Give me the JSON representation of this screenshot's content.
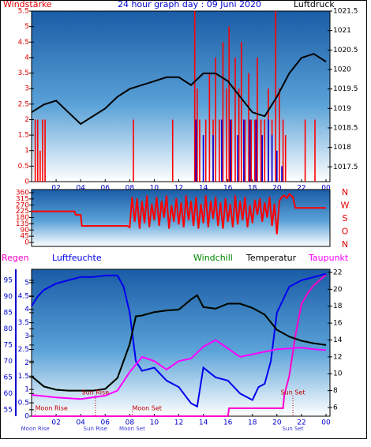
{
  "chart_data": [
    {
      "type": "bar",
      "title": "24 hour graph day : 09 Juni 2020",
      "ylabel": "Windstärke",
      "y2label": "Luftdruck",
      "ycolor": "#e00000",
      "y2color": "#000000",
      "xlim": [
        0,
        24
      ],
      "xticks": [
        {
          "value": 2,
          "label": "02"
        },
        {
          "value": 4,
          "label": "04"
        },
        {
          "value": 6,
          "label": "06"
        },
        {
          "value": 8,
          "label": "08"
        },
        10,
        12,
        14,
        16,
        18,
        20,
        22,
        {
          "value": 24,
          "label": "00"
        }
      ],
      "ylim": [
        0,
        5.5
      ],
      "yticks": [
        0,
        0.5,
        1,
        1.5,
        2,
        2.5,
        3,
        3.5,
        4,
        4.5,
        5,
        5.5
      ],
      "y2lim": [
        1017.12,
        1021.5
      ],
      "y2ticks": [
        1017.5,
        1018,
        1018.5,
        1019,
        1019.5,
        1020,
        1020.5,
        1021,
        1021.5
      ],
      "series": [
        {
          "type": "bar",
          "color": "#ff0000",
          "x": [
            0.3,
            0.5,
            0.7,
            0.9,
            1.1,
            8.3,
            11.5,
            13.3,
            13.5,
            13.7,
            14.2,
            14.5,
            14.8,
            15.0,
            15.3,
            15.6,
            15.9,
            16.1,
            16.3,
            16.6,
            16.9,
            17.1,
            17.4,
            17.7,
            17.9,
            18.2,
            18.4,
            18.7,
            19.0,
            19.3,
            19.6,
            19.9,
            20.2,
            20.5,
            20.7,
            22.3,
            23.1
          ],
          "values": [
            2,
            2,
            1,
            2,
            2,
            2,
            2,
            5.5,
            3,
            2,
            2,
            3.5,
            2,
            4,
            2,
            4.5,
            3,
            5,
            2,
            4,
            3,
            4.5,
            2,
            3.5,
            2,
            2,
            4,
            2,
            2,
            3,
            2,
            5.5,
            3,
            2,
            1.5,
            2,
            2
          ]
        },
        {
          "type": "bar",
          "color": "#0000dd",
          "x": [
            13.4,
            14.0,
            14.8,
            15.5,
            16.2,
            16.8,
            17.3,
            17.8,
            18.3,
            18.8,
            19.3,
            19.6,
            20.0,
            20.4
          ],
          "values": [
            2,
            1.5,
            1.5,
            2,
            2,
            1.5,
            2,
            2,
            2,
            1.5,
            2,
            1.5,
            1,
            0.5
          ]
        },
        {
          "type": "line",
          "axis": "y2",
          "color": "#000000",
          "x": [
            0,
            1,
            2,
            3,
            4,
            5,
            6,
            7,
            8,
            9,
            10,
            11,
            12,
            13,
            14,
            15,
            16,
            17,
            18,
            19,
            20,
            21,
            22,
            23,
            24
          ],
          "values": [
            1018.9,
            1019.1,
            1019.2,
            1018.9,
            1018.6,
            1018.8,
            1019.0,
            1019.3,
            1019.5,
            1019.6,
            1019.7,
            1019.8,
            1019.8,
            1019.6,
            1019.9,
            1019.9,
            1019.7,
            1019.3,
            1018.9,
            1018.8,
            1019.3,
            1019.9,
            1020.3,
            1020.4,
            1020.2
          ]
        }
      ]
    },
    {
      "type": "line",
      "ycolor": "#e00000",
      "xlim": [
        0,
        24
      ],
      "ylim": [
        0,
        360
      ],
      "yticks": [
        0,
        45,
        90,
        135,
        180,
        225,
        270,
        315,
        360
      ],
      "compass": [
        "N",
        "W",
        "S",
        "O",
        "N"
      ],
      "series": [
        {
          "type": "line",
          "color": "#ff0000",
          "x": [
            0,
            3.5,
            3.6,
            4,
            4.1,
            7.8,
            8.0,
            8.2,
            8.4,
            8.6,
            8.8,
            9,
            9.2,
            9.4,
            9.6,
            9.8,
            10,
            10.2,
            10.4,
            10.6,
            10.8,
            11,
            11.2,
            11.4,
            11.6,
            11.8,
            12,
            12.2,
            12.4,
            12.6,
            12.8,
            13,
            13.2,
            13.4,
            13.6,
            13.8,
            14,
            14.2,
            14.4,
            14.6,
            14.8,
            15,
            15.2,
            15.4,
            15.6,
            15.8,
            16,
            16.2,
            16.4,
            16.6,
            16.8,
            17,
            17.2,
            17.4,
            17.6,
            17.8,
            18,
            18.2,
            18.4,
            18.6,
            18.8,
            19,
            19.2,
            19.4,
            19.6,
            19.8,
            20,
            20.2,
            20.4,
            20.6,
            20.8,
            21,
            21.3,
            21.5,
            24
          ],
          "values": [
            225,
            225,
            200,
            200,
            120,
            120,
            110,
            330,
            150,
            320,
            100,
            300,
            140,
            340,
            110,
            280,
            160,
            330,
            120,
            300,
            180,
            340,
            100,
            270,
            150,
            320,
            130,
            290,
            110,
            340,
            160,
            300,
            120,
            330,
            100,
            280,
            140,
            340,
            110,
            300,
            170,
            330,
            120,
            290,
            100,
            320,
            150,
            280,
            110,
            340,
            130,
            300,
            160,
            330,
            110,
            270,
            140,
            310,
            200,
            320,
            150,
            290,
            180,
            330,
            120,
            280,
            60,
            300,
            330,
            340,
            320,
            350,
            330,
            250,
            250
          ]
        }
      ]
    },
    {
      "type": "line",
      "xlim": [
        0,
        24
      ],
      "xticks": [
        {
          "value": 2,
          "label": "02"
        },
        {
          "value": 4,
          "label": "04"
        },
        {
          "value": 6,
          "label": "06"
        },
        {
          "value": 8,
          "label": "08"
        },
        10,
        12,
        14,
        16,
        18,
        20,
        22,
        {
          "value": 24,
          "label": "00"
        }
      ],
      "ylim": [
        53,
        98.4
      ],
      "yticks": [
        55,
        60,
        65,
        70,
        75,
        80,
        85,
        90,
        95
      ],
      "ycolor": "#0000cc",
      "y3lim": [
        0,
        5.5
      ],
      "y3ticks": [
        0,
        0.5,
        1,
        1.5,
        2,
        2.5,
        3,
        3.5,
        4,
        4.5,
        5
      ],
      "y3color": "#0000cc",
      "y2lim": [
        4.97,
        22.37
      ],
      "y2ticks": [
        6,
        8,
        10,
        12,
        14,
        16,
        18,
        20,
        22
      ],
      "y2color": "#000000",
      "series": [
        {
          "name": "Regen",
          "axis": "y3",
          "color": "#ff00cc",
          "x": [
            0,
            16,
            16.1,
            20.5,
            20.6,
            21,
            21.5,
            22,
            22.5,
            23,
            24
          ],
          "values": [
            0,
            0,
            0.3,
            0.3,
            0.8,
            1.5,
            3,
            4.2,
            4.6,
            4.9,
            5.3
          ]
        },
        {
          "name": "Luftfeuchte",
          "color": "#0000ee",
          "x": [
            0,
            0.5,
            1,
            2,
            3,
            4,
            5,
            6,
            7,
            7.5,
            8,
            8.5,
            9,
            10,
            11,
            12,
            13,
            13.5,
            14,
            15,
            16,
            17,
            18,
            18.5,
            19,
            19.5,
            20,
            21,
            22,
            23,
            24
          ],
          "values": [
            87,
            90,
            92,
            94,
            95,
            96,
            96,
            96.5,
            96.5,
            93,
            85,
            70,
            67,
            68,
            64,
            62,
            57,
            56,
            68,
            65,
            64,
            60,
            58,
            62,
            63,
            70,
            85,
            93,
            95,
            96,
            97
          ]
        },
        {
          "name": "Windchill",
          "axis": "y2",
          "color": "#008800",
          "x": [
            0,
            1,
            2,
            3,
            4,
            5,
            6,
            7,
            8,
            8.5,
            9,
            10,
            11,
            12,
            13,
            13.5,
            14,
            15,
            16,
            17,
            18,
            19,
            20,
            21,
            22,
            23,
            24
          ],
          "values": [
            9.7,
            8.5,
            8.1,
            8.0,
            8.0,
            8.0,
            8.2,
            9.5,
            13.5,
            16.8,
            16.9,
            17.3,
            17.5,
            17.6,
            18.8,
            19.3,
            17.9,
            17.7,
            18.3,
            18.3,
            17.8,
            17.0,
            15.2,
            14.4,
            13.9,
            13.6,
            13.4
          ]
        },
        {
          "name": "Temperatur",
          "axis": "y2",
          "color": "#000000",
          "x": [
            0,
            1,
            2,
            3,
            4,
            5,
            6,
            7,
            8,
            8.5,
            9,
            10,
            11,
            12,
            13,
            13.5,
            14,
            15,
            16,
            17,
            18,
            19,
            20,
            21,
            22,
            23,
            24
          ],
          "values": [
            9.7,
            8.5,
            8.1,
            8.0,
            8.0,
            8.0,
            8.2,
            9.5,
            13.5,
            16.8,
            16.9,
            17.3,
            17.5,
            17.6,
            18.8,
            19.3,
            17.9,
            17.7,
            18.3,
            18.3,
            17.8,
            17.0,
            15.2,
            14.4,
            13.9,
            13.6,
            13.4
          ]
        },
        {
          "name": "Taupunkt",
          "axis": "y2",
          "color": "#ff00ff",
          "x": [
            0,
            2,
            4,
            6,
            7,
            8,
            9,
            10,
            11,
            12,
            13,
            14,
            15,
            16,
            17,
            18,
            19,
            20,
            21,
            22,
            23,
            24
          ],
          "values": [
            7.5,
            7.2,
            7.0,
            7.4,
            8.0,
            10.2,
            12.0,
            11.5,
            10.5,
            11.5,
            11.8,
            13.2,
            14.0,
            13.0,
            12.0,
            12.3,
            12.6,
            12.9,
            13.0,
            13.1,
            12.9,
            12.8
          ]
        }
      ],
      "events": [
        {
          "label": "Moon Rise",
          "x": 0.3
        },
        {
          "label": "Sun Rise",
          "x": 5.2
        },
        {
          "label": "Moon Set",
          "x": 8.2
        },
        {
          "label": "Sun Set",
          "x": 21.3
        }
      ]
    }
  ]
}
